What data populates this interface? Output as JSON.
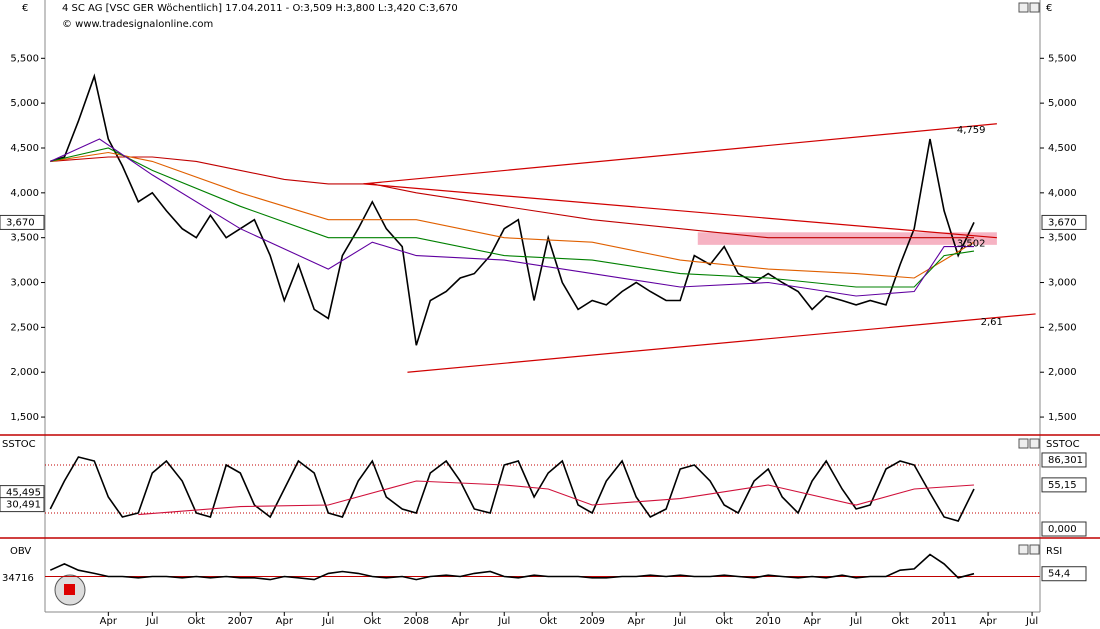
{
  "header": {
    "title": "4 SC AG [VSC GER  Wöchentlich] 17.04.2011 - O:3,509 H:3,800 L:3,420 C:3,670",
    "source": "© www.tradesignalonline.com",
    "currency": "€"
  },
  "chart_data": [
    {
      "type": "line",
      "xlim": [
        2005.89,
        2011.545
      ],
      "ylim": [
        1.3,
        6.15
      ],
      "yticks": [
        {
          "value": 1.5,
          "label": "1,500"
        },
        {
          "value": 2,
          "label": "2,000"
        },
        {
          "value": 2.5,
          "label": "2,500"
        },
        {
          "value": 3,
          "label": "3,000"
        },
        {
          "value": 3.5,
          "label": "3,500"
        },
        {
          "value": 4,
          "label": "4,000"
        },
        {
          "value": 4.5,
          "label": "4,500"
        },
        {
          "value": 5,
          "label": "5,000"
        },
        {
          "value": 5.5,
          "label": "5,500"
        }
      ],
      "x": [
        2005.92,
        2006.0,
        2006.08,
        2006.17,
        2006.25,
        2006.33,
        2006.42,
        2006.5,
        2006.58,
        2006.67,
        2006.75,
        2006.83,
        2006.92,
        2007.0,
        2007.08,
        2007.17,
        2007.25,
        2007.33,
        2007.42,
        2007.5,
        2007.58,
        2007.67,
        2007.75,
        2007.83,
        2007.92,
        2008.0,
        2008.08,
        2008.17,
        2008.25,
        2008.33,
        2008.42,
        2008.5,
        2008.58,
        2008.67,
        2008.75,
        2008.83,
        2008.92,
        2009.0,
        2009.08,
        2009.17,
        2009.25,
        2009.33,
        2009.42,
        2009.5,
        2009.58,
        2009.67,
        2009.75,
        2009.83,
        2009.92,
        2010.0,
        2010.08,
        2010.17,
        2010.25,
        2010.33,
        2010.42,
        2010.5,
        2010.58,
        2010.67,
        2010.75,
        2010.83,
        2010.92,
        2011.0,
        2011.08,
        2011.17
      ],
      "series": [
        {
          "color": "#000000",
          "values": [
            4.35,
            4.4,
            4.8,
            5.3,
            4.6,
            4.3,
            3.9,
            4.0,
            3.8,
            3.6,
            3.5,
            3.75,
            3.5,
            3.6,
            3.7,
            3.3,
            2.8,
            3.2,
            2.7,
            2.6,
            3.3,
            3.6,
            3.9,
            3.6,
            3.4,
            2.3,
            2.8,
            2.9,
            3.05,
            3.1,
            3.3,
            3.6,
            3.7,
            2.8,
            3.5,
            3.0,
            2.7,
            2.8,
            2.75,
            2.9,
            3.0,
            2.9,
            2.8,
            2.8,
            3.3,
            3.2,
            3.4,
            3.1,
            3.0,
            3.1,
            3.0,
            2.9,
            2.7,
            2.85,
            2.8,
            2.75,
            2.8,
            2.75,
            3.2,
            3.6,
            4.6,
            3.8,
            3.3,
            3.67
          ]
        },
        {
          "color": "#c00000",
          "x": [
            2005.92,
            2006.25,
            2006.5,
            2006.75,
            2007.0,
            2007.25,
            2007.5,
            2007.75,
            2008.0,
            2008.5,
            2009.0,
            2009.5,
            2010.0,
            2010.5,
            2010.83,
            2011.17
          ],
          "values": [
            4.35,
            4.4,
            4.4,
            4.35,
            4.25,
            4.15,
            4.1,
            4.1,
            4.0,
            3.85,
            3.7,
            3.6,
            3.5,
            3.5,
            3.5,
            3.5
          ]
        },
        {
          "color": "#e06000",
          "x": [
            2005.92,
            2006.25,
            2006.5,
            2007.0,
            2007.5,
            2008.0,
            2008.5,
            2009.0,
            2009.5,
            2010.0,
            2010.5,
            2010.83,
            2011.0,
            2011.17
          ],
          "values": [
            4.35,
            4.45,
            4.35,
            4.0,
            3.7,
            3.7,
            3.5,
            3.45,
            3.25,
            3.15,
            3.1,
            3.05,
            3.25,
            3.45
          ]
        },
        {
          "color": "#008000",
          "x": [
            2005.92,
            2006.25,
            2006.5,
            2007.0,
            2007.5,
            2008.0,
            2008.5,
            2009.0,
            2009.5,
            2010.0,
            2010.5,
            2010.83,
            2011.0,
            2011.17
          ],
          "values": [
            4.35,
            4.5,
            4.25,
            3.85,
            3.5,
            3.5,
            3.3,
            3.25,
            3.1,
            3.05,
            2.95,
            2.95,
            3.3,
            3.35
          ]
        },
        {
          "color": "#6000a0",
          "x": [
            2005.92,
            2006.2,
            2006.5,
            2007.0,
            2007.5,
            2007.75,
            2008.0,
            2008.5,
            2009.0,
            2009.5,
            2010.0,
            2010.5,
            2010.83,
            2011.0,
            2011.17
          ],
          "values": [
            4.35,
            4.6,
            4.2,
            3.6,
            3.15,
            3.45,
            3.3,
            3.25,
            3.1,
            2.95,
            3.0,
            2.85,
            2.9,
            3.4,
            3.4
          ]
        }
      ],
      "zone": {
        "x": [
          2009.6,
          2011.3
        ],
        "values": [
          3.42,
          3.56
        ],
        "color": "#f4a6b8"
      },
      "trendlines": [
        {
          "x": [
            2007.7,
            2011.3
          ],
          "values": [
            4.1,
            4.77
          ],
          "label": "4,759",
          "color": "#d00000"
        },
        {
          "x": [
            2007.95,
            2011.52
          ],
          "values": [
            2.0,
            2.65
          ],
          "label": "2,61",
          "color": "#d00000"
        },
        {
          "x": [
            2007.7,
            2011.3
          ],
          "values": [
            4.1,
            3.5
          ],
          "label": "3,502",
          "color": "#d00000"
        }
      ],
      "markers": [
        {
          "value": 3.67,
          "label": "3,670",
          "side": "both"
        }
      ]
    },
    {
      "type": "line",
      "title": "SSTOC",
      "xlim": [
        2005.89,
        2011.545
      ],
      "ylim": [
        -7.5,
        115
      ],
      "levels": [
        20,
        80
      ],
      "x": [
        2005.92,
        2006.0,
        2006.08,
        2006.17,
        2006.25,
        2006.33,
        2006.42,
        2006.5,
        2006.58,
        2006.67,
        2006.75,
        2006.83,
        2006.92,
        2007.0,
        2007.08,
        2007.17,
        2007.25,
        2007.33,
        2007.42,
        2007.5,
        2007.58,
        2007.67,
        2007.75,
        2007.83,
        2007.92,
        2008.0,
        2008.08,
        2008.17,
        2008.25,
        2008.33,
        2008.42,
        2008.5,
        2008.58,
        2008.67,
        2008.75,
        2008.83,
        2008.92,
        2009.0,
        2009.08,
        2009.17,
        2009.25,
        2009.33,
        2009.42,
        2009.5,
        2009.58,
        2009.67,
        2009.75,
        2009.83,
        2009.92,
        2010.0,
        2010.08,
        2010.17,
        2010.25,
        2010.33,
        2010.42,
        2010.5,
        2010.58,
        2010.67,
        2010.75,
        2010.83,
        2010.92,
        2011.0,
        2011.08,
        2011.17
      ],
      "series": [
        {
          "color": "#000000",
          "values": [
            25,
            60,
            90,
            85,
            40,
            15,
            20,
            70,
            85,
            60,
            20,
            15,
            80,
            70,
            30,
            15,
            50,
            85,
            70,
            20,
            15,
            60,
            85,
            40,
            25,
            20,
            70,
            85,
            60,
            25,
            20,
            80,
            85,
            40,
            70,
            85,
            30,
            20,
            60,
            85,
            40,
            15,
            25,
            75,
            80,
            60,
            30,
            20,
            60,
            75,
            40,
            20,
            60,
            85,
            50,
            25,
            30,
            75,
            85,
            80,
            45,
            15,
            10,
            50
          ]
        },
        {
          "color": "#d0103a",
          "x": [
            2006.42,
            2007.0,
            2007.5,
            2008.0,
            2008.5,
            2008.75,
            2009.0,
            2009.5,
            2010.0,
            2010.5,
            2010.83,
            2011.17
          ],
          "values": [
            18,
            28,
            30,
            60,
            55,
            50,
            30,
            38,
            55,
            30,
            50,
            55
          ]
        }
      ],
      "markers": [
        {
          "value": 86.301,
          "label": "86,301",
          "side": "right"
        },
        {
          "value": 55.15,
          "label": "55,15",
          "side": "right"
        },
        {
          "value": 0,
          "label": "0,000",
          "side": "right"
        },
        {
          "value": 45.495,
          "label": "45,495",
          "side": "left"
        },
        {
          "value": 30.491,
          "label": "30,491",
          "side": "left"
        }
      ]
    },
    {
      "type": "line",
      "title": "RSI",
      "left_title": "OBV",
      "left_label": "34716",
      "xlim": [
        2005.89,
        2011.545
      ],
      "ylim": [
        0,
        100
      ],
      "hline": 50,
      "xticks": [
        {
          "value": 2006.25,
          "label": "Apr"
        },
        {
          "value": 2006.5,
          "label": "Jul"
        },
        {
          "value": 2006.75,
          "label": "Okt"
        },
        2007,
        {
          "value": 2007.25,
          "label": "Apr"
        },
        {
          "value": 2007.5,
          "label": "Jul"
        },
        {
          "value": 2007.75,
          "label": "Okt"
        },
        2008,
        {
          "value": 2008.25,
          "label": "Apr"
        },
        {
          "value": 2008.5,
          "label": "Jul"
        },
        {
          "value": 2008.75,
          "label": "Okt"
        },
        2009,
        {
          "value": 2009.25,
          "label": "Apr"
        },
        {
          "value": 2009.5,
          "label": "Jul"
        },
        {
          "value": 2009.75,
          "label": "Okt"
        },
        2010,
        {
          "value": 2010.25,
          "label": "Apr"
        },
        {
          "value": 2010.5,
          "label": "Jul"
        },
        {
          "value": 2010.75,
          "label": "Okt"
        },
        2011,
        {
          "value": 2011.25,
          "label": "Apr"
        },
        {
          "value": 2011.5,
          "label": "Jul"
        }
      ],
      "x": [
        2005.92,
        2006.0,
        2006.08,
        2006.17,
        2006.25,
        2006.33,
        2006.42,
        2006.5,
        2006.58,
        2006.67,
        2006.75,
        2006.83,
        2006.92,
        2007.0,
        2007.08,
        2007.17,
        2007.25,
        2007.33,
        2007.42,
        2007.5,
        2007.58,
        2007.67,
        2007.75,
        2007.83,
        2007.92,
        2008.0,
        2008.08,
        2008.17,
        2008.25,
        2008.33,
        2008.42,
        2008.5,
        2008.58,
        2008.67,
        2008.75,
        2008.83,
        2008.92,
        2009.0,
        2009.08,
        2009.17,
        2009.25,
        2009.33,
        2009.42,
        2009.5,
        2009.58,
        2009.67,
        2009.75,
        2009.83,
        2009.92,
        2010.0,
        2010.08,
        2010.17,
        2010.25,
        2010.33,
        2010.42,
        2010.5,
        2010.58,
        2010.67,
        2010.75,
        2010.83,
        2010.92,
        2011.0,
        2011.08,
        2011.17
      ],
      "series": [
        {
          "color": "#000000",
          "values": [
            60,
            70,
            60,
            55,
            50,
            50,
            48,
            50,
            50,
            48,
            50,
            48,
            50,
            48,
            48,
            45,
            50,
            48,
            45,
            55,
            58,
            55,
            50,
            48,
            50,
            45,
            50,
            52,
            50,
            55,
            58,
            50,
            48,
            52,
            50,
            50,
            50,
            48,
            48,
            50,
            50,
            52,
            50,
            52,
            50,
            50,
            52,
            50,
            48,
            52,
            50,
            48,
            50,
            48,
            52,
            48,
            50,
            50,
            60,
            62,
            85,
            70,
            48,
            54.4
          ]
        }
      ],
      "markers": [
        {
          "value": 54.4,
          "label": "54,4",
          "side": "right"
        }
      ]
    }
  ]
}
